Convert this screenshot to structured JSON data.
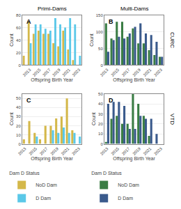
{
  "chart_data": [
    {
      "type": "bar",
      "title": "A",
      "subtitle": "Primi-Dams",
      "xlabel": "Offspring Birth Year",
      "ylabel": "Count",
      "categories": [
        null,
        "2013",
        null,
        "2015",
        null,
        "2017",
        null,
        "2019",
        null,
        "2021",
        null,
        "2023"
      ],
      "series": [
        {
          "name": "NoD Dam",
          "color": "#d4b84a",
          "values": [
            15,
            70,
            50,
            55,
            50,
            50,
            35,
            30,
            55,
            25,
            8,
            0
          ]
        },
        {
          "name": "D Dam",
          "color": "#5bc8e8",
          "values": [
            0,
            35,
            65,
            65,
            58,
            55,
            75,
            65,
            60,
            75,
            65,
            15
          ]
        }
      ],
      "ylim": [
        0,
        80
      ],
      "yticks": [
        0,
        20,
        40,
        60,
        80
      ],
      "grid": true,
      "legend": false
    },
    {
      "type": "bar",
      "title": "B",
      "subtitle": "Multi-Dams",
      "annotations": [
        "CURC"
      ],
      "xlabel": "Offspring Birth Year",
      "ylabel": "Count",
      "categories": [
        "2013",
        null,
        "2015",
        null,
        "2017",
        null,
        "2019",
        null,
        "2021",
        null,
        "2023"
      ],
      "series": [
        {
          "name": "NoD Dam",
          "color": "#3a7d44",
          "values": [
            125,
            80,
            130,
            130,
            85,
            110,
            65,
            65,
            45,
            30,
            25
          ]
        },
        {
          "name": "D Dam",
          "color": "#3a5a8c",
          "values": [
            40,
            75,
            85,
            80,
            95,
            115,
            125,
            95,
            90,
            70,
            25
          ]
        }
      ],
      "ylim": [
        0,
        150
      ],
      "yticks": [
        0,
        50,
        100,
        150
      ],
      "grid": true,
      "legend": false
    },
    {
      "type": "bar",
      "title": "C",
      "xlabel": "Offspring Birth Year",
      "ylabel": "Count",
      "categories": [
        "2013",
        null,
        "2015",
        null,
        "2017",
        null,
        "2019",
        null,
        "2021",
        null,
        "2023"
      ],
      "series": [
        {
          "name": "NoD Dam",
          "color": "#d4b84a",
          "values": [
            5,
            25,
            12,
            5,
            20,
            20,
            28,
            30,
            50,
            15,
            0
          ]
        },
        {
          "name": "D Dam",
          "color": "#5bc8e8",
          "values": [
            0,
            0,
            8,
            0,
            0,
            15,
            12,
            18,
            12,
            12,
            8
          ]
        }
      ],
      "ylim": [
        0,
        55
      ],
      "yticks": [
        0,
        10,
        20,
        30,
        40,
        50
      ],
      "grid": true,
      "legend": "bottom",
      "legend_title": "Dam D Status"
    },
    {
      "type": "bar",
      "title": "D",
      "annotations": [
        "VTD"
      ],
      "xlabel": "Offspring Birth Year",
      "ylabel": "Count",
      "categories": [
        "2013",
        null,
        "2015",
        null,
        "2017",
        null,
        "2019",
        null,
        "2021",
        null,
        "2023"
      ],
      "series": [
        {
          "name": "NoD Dam",
          "color": "#3a7d44",
          "values": [
            2,
            25,
            28,
            20,
            20,
            50,
            40,
            28,
            8,
            0,
            0
          ]
        },
        {
          "name": "D Dam",
          "color": "#3a5a8c",
          "values": [
            40,
            42,
            42,
            38,
            15,
            15,
            28,
            25,
            25,
            10,
            0
          ]
        }
      ],
      "ylim": [
        0,
        50
      ],
      "yticks": [
        0,
        10,
        20,
        30,
        40,
        50
      ],
      "grid": true,
      "legend": "bottom",
      "legend_title": "Dam D Status"
    }
  ]
}
